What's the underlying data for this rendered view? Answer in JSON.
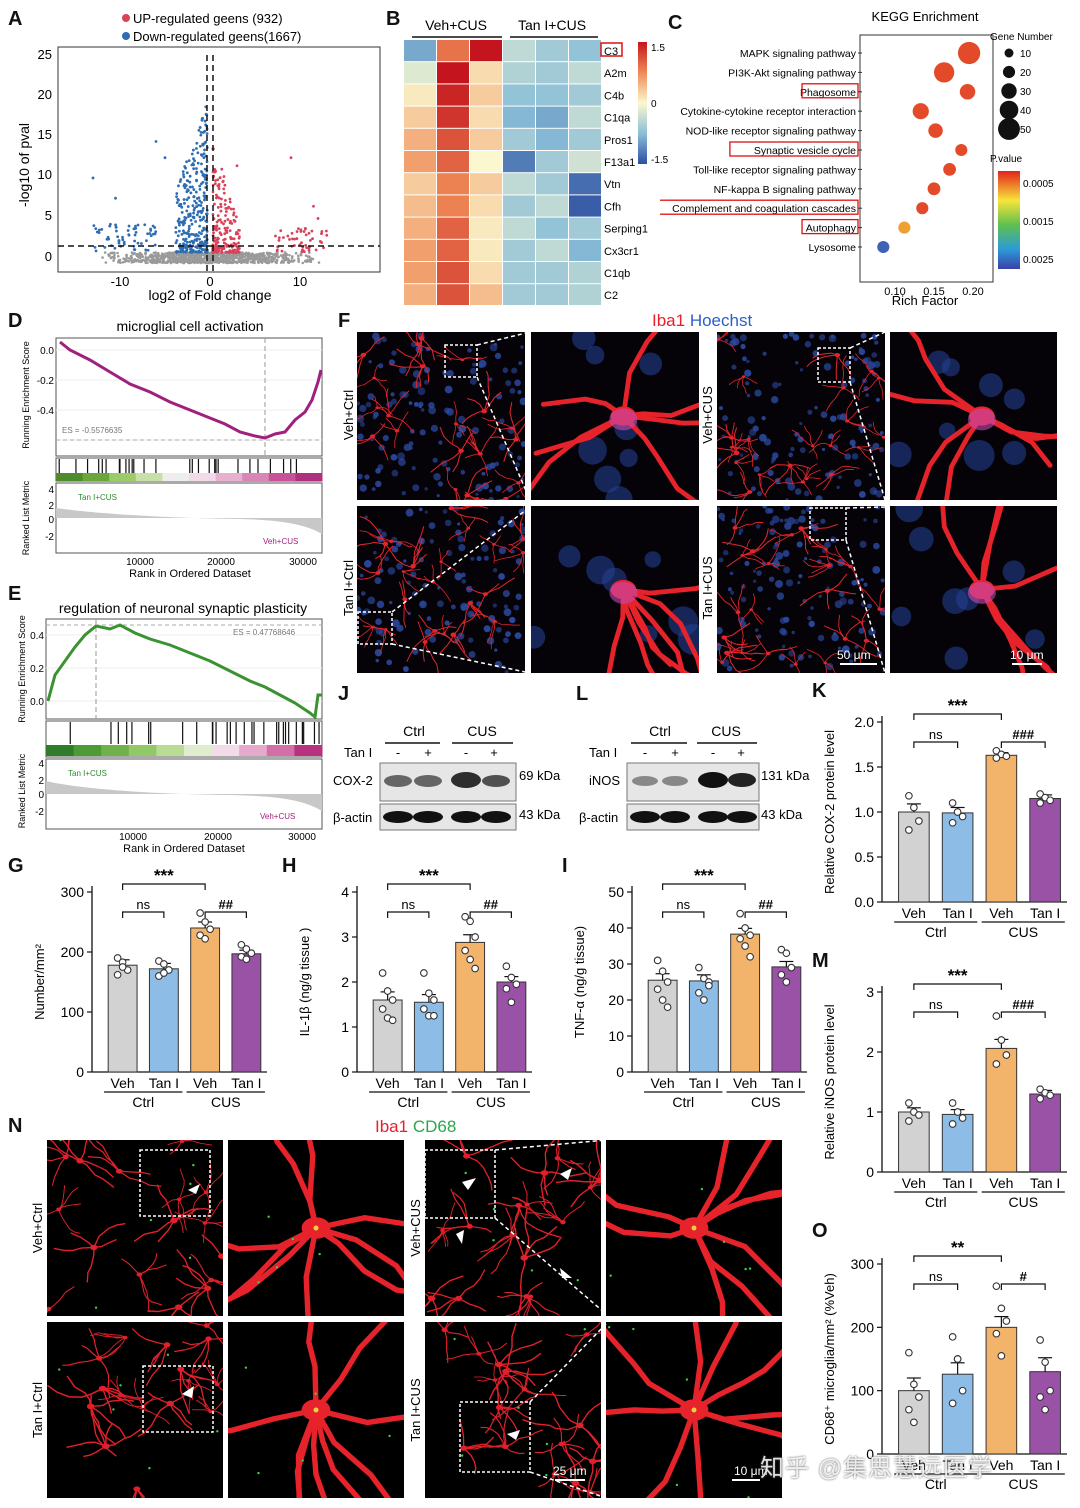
{
  "panels": {
    "A": "A",
    "B": "B",
    "C": "C",
    "D": "D",
    "E": "E",
    "F": "F",
    "G": "G",
    "H": "H",
    "I": "I",
    "J": "J",
    "K": "K",
    "L": "L",
    "M": "M",
    "N": "N",
    "O": "O"
  },
  "volcano": {
    "legend_up": "UP-regulated geens (932)",
    "legend_down": "Down-regulated geens(1667)",
    "xlabel": "log2 of Fold change",
    "ylabel": "-log10 of pval",
    "yticks": [
      "0",
      "5",
      "10",
      "15",
      "20",
      "25"
    ],
    "xticks": [
      "-10",
      "0",
      "10"
    ],
    "colors": {
      "up": "#d9435a",
      "down": "#2e6db3",
      "ns": "#9a9a9a"
    }
  },
  "heatmap": {
    "group1": "Veh+CUS",
    "group2": "Tan I+CUS",
    "genes": [
      "C3",
      "A2m",
      "C4b",
      "C1qa",
      "Pros1",
      "F13a1",
      "Vtn",
      "Cfh",
      "Serping1",
      "Cx3cr1",
      "C1qb",
      "C2"
    ],
    "scale_labels": [
      "1.5",
      "0",
      "-1.5"
    ],
    "values": [
      [
        -0.9,
        0.9,
        1.5,
        -0.4,
        -0.6,
        -0.7
      ],
      [
        -0.2,
        1.5,
        0.2,
        -0.5,
        -0.6,
        -0.4
      ],
      [
        0.1,
        1.4,
        0.3,
        -0.7,
        -0.7,
        -0.6
      ],
      [
        0.3,
        1.3,
        0.2,
        -0.8,
        -0.9,
        -0.4
      ],
      [
        0.5,
        1.1,
        0.3,
        -0.6,
        -0.8,
        -0.6
      ],
      [
        0.6,
        1.0,
        0.0,
        -1.2,
        -0.6,
        -0.3
      ],
      [
        0.3,
        0.8,
        0.3,
        -0.4,
        -0.6,
        -1.3
      ],
      [
        0.4,
        0.8,
        0.2,
        -0.6,
        -0.4,
        -1.4
      ],
      [
        0.5,
        1.0,
        0.1,
        -0.4,
        -0.7,
        -0.6
      ],
      [
        0.6,
        1.0,
        0.1,
        -0.6,
        -0.4,
        -0.8
      ],
      [
        0.6,
        1.1,
        0.2,
        -0.6,
        -0.6,
        -0.5
      ],
      [
        0.5,
        1.1,
        0.4,
        -0.6,
        -0.6,
        -0.5
      ]
    ]
  },
  "kegg": {
    "title": "KEGG Enrichment",
    "xlabel": "Rich Factor",
    "xticks": [
      "0.10",
      "0.15",
      "0.20"
    ],
    "size_title": "Gene Number",
    "size_labels": [
      "10",
      "20",
      "30",
      "40",
      "50"
    ],
    "color_title": "P.value",
    "color_labels": [
      "0.0005",
      "0.0015",
      "0.0025"
    ],
    "pathways": [
      {
        "name": "MAPK signaling pathway",
        "rf": 0.195,
        "n": 48,
        "p": 0.0004,
        "boxed": false
      },
      {
        "name": "PI3K-Akt signaling pathway",
        "rf": 0.163,
        "n": 42,
        "p": 0.0006,
        "boxed": false
      },
      {
        "name": "Phagosome",
        "rf": 0.193,
        "n": 28,
        "p": 0.0005,
        "boxed": true
      },
      {
        "name": "Cytokine-cytokine receptor interaction",
        "rf": 0.133,
        "n": 30,
        "p": 0.0006,
        "boxed": false
      },
      {
        "name": "NOD-like receptor signaling pathway",
        "rf": 0.152,
        "n": 25,
        "p": 0.0006,
        "boxed": false
      },
      {
        "name": "Synaptic vesicle cycle",
        "rf": 0.185,
        "n": 18,
        "p": 0.0005,
        "boxed": true
      },
      {
        "name": "Toll-like receptor signaling pathway",
        "rf": 0.17,
        "n": 20,
        "p": 0.0006,
        "boxed": false
      },
      {
        "name": "NF-kappa B signaling pathway",
        "rf": 0.15,
        "n": 20,
        "p": 0.0006,
        "boxed": false
      },
      {
        "name": "Complement and coagulation cascades",
        "rf": 0.135,
        "n": 18,
        "p": 0.0006,
        "boxed": true
      },
      {
        "name": "Autophagy",
        "rf": 0.112,
        "n": 18,
        "p": 0.0008,
        "boxed": true
      },
      {
        "name": "Lysosome",
        "rf": 0.085,
        "n": 18,
        "p": 0.0026,
        "boxed": false
      }
    ]
  },
  "gsea_d": {
    "title": "microglial cell activation",
    "es": "ES = -0.5576635",
    "ylabel_top": "Running Enrichment Score",
    "ylabel_bottom": "Ranked List Metric",
    "xlabel": "Rank in Ordered Dataset",
    "pos_label": "Tan I+CUS",
    "neg_label": "Veh+CUS",
    "yticks": [
      "0.0",
      "-0.2",
      "-0.4"
    ],
    "xticks": [
      "10000",
      "20000",
      "30000"
    ],
    "metric_ticks": [
      "4",
      "2",
      "0",
      "-2"
    ]
  },
  "gsea_e": {
    "title": "regulation of neuronal synaptic plasticity",
    "es": "ES = 0.47768646",
    "ylabel_top": "Running Enrichment Score",
    "ylabel_bottom": "Ranked List Metric",
    "xlabel": "Rank in Ordered Dataset",
    "pos_label": "Tan I+CUS",
    "neg_label": "Veh+CUS",
    "yticks": [
      "0.4",
      "0.2",
      "0.0"
    ],
    "xticks": [
      "10000",
      "20000",
      "30000"
    ],
    "metric_ticks": [
      "4",
      "2",
      "0",
      "-2"
    ]
  },
  "if_f": {
    "stain1": "Iba1",
    "stain2": "Hoechst",
    "rows": [
      "Veh+Ctrl",
      "Tan I+Ctrl"
    ],
    "rows2": [
      "Veh+CUS",
      "Tan I+CUS"
    ],
    "scale1": "50 μm",
    "scale2": "10 μm"
  },
  "blot_j": {
    "group1": "Ctrl",
    "group2": "CUS",
    "treat": "Tan I",
    "signs": [
      "-",
      "+",
      "-",
      "+"
    ],
    "band1": "COX-2",
    "band2": "β-actin",
    "kda1": "69 kDa",
    "kda2": "43 kDa"
  },
  "blot_l": {
    "group1": "Ctrl",
    "group2": "CUS",
    "treat": "Tan I",
    "signs": [
      "-",
      "+",
      "-",
      "+"
    ],
    "band1": "iNOS",
    "band2": "β-actin",
    "kda1": "131 kDa",
    "kda2": "43 kDa"
  },
  "bars": {
    "group_labels": [
      "Veh",
      "Tan I",
      "Veh",
      "Tan I"
    ],
    "sub_labels": [
      "Ctrl",
      "CUS"
    ],
    "colors": [
      "#d2d2d2",
      "#8dbde6",
      "#f2b36a",
      "#9a52a6"
    ],
    "G": {
      "ylabel": "Number/mm²",
      "yticks": [
        "0",
        "100",
        "200",
        "300"
      ],
      "ymax": 300,
      "means": [
        178,
        172,
        240,
        197
      ],
      "sem": [
        9,
        9,
        10,
        6
      ],
      "points": [
        [
          190,
          183,
          170,
          162,
          175
        ],
        [
          185,
          180,
          170,
          160,
          165
        ],
        [
          265,
          250,
          238,
          228,
          222
        ],
        [
          212,
          205,
          198,
          192,
          188
        ]
      ],
      "sig1": "***",
      "sig2": "##",
      "ns": "ns"
    },
    "H": {
      "ylabel": "IL-1β (ng/g tissue )",
      "yticks": [
        "0",
        "1",
        "2",
        "3",
        "4"
      ],
      "ymax": 4,
      "means": [
        1.6,
        1.55,
        2.88,
        2.0
      ],
      "sem": [
        0.18,
        0.17,
        0.17,
        0.12
      ],
      "points": [
        [
          2.2,
          1.8,
          1.6,
          1.4,
          1.2,
          1.15
        ],
        [
          2.2,
          1.75,
          1.6,
          1.4,
          1.25,
          1.25
        ],
        [
          3.45,
          3.35,
          3.0,
          2.7,
          2.5,
          2.3
        ],
        [
          2.35,
          2.1,
          1.95,
          1.85,
          1.55
        ]
      ],
      "sig1": "***",
      "sig2": "##",
      "ns": "ns"
    },
    "I": {
      "ylabel": "TNF-α (ng/g tissue)",
      "yticks": [
        "0",
        "10",
        "20",
        "30",
        "40",
        "50"
      ],
      "ymax": 50,
      "means": [
        25.5,
        25.3,
        38.3,
        29.2
      ],
      "sem": [
        1.8,
        1.7,
        1.6,
        1.5
      ],
      "points": [
        [
          31,
          28,
          25,
          23,
          20,
          18
        ],
        [
          29,
          26,
          25,
          22,
          20,
          24
        ],
        [
          44,
          40,
          38,
          37,
          35,
          32
        ],
        [
          34,
          33,
          29,
          27,
          25
        ]
      ],
      "sig1": "***",
      "sig2": "##",
      "ns": "ns"
    },
    "K": {
      "ylabel": "Relative COX-2 protein level",
      "yticks": [
        "0.0",
        "0.5",
        "1.0",
        "1.5",
        "2.0"
      ],
      "ymax": 2,
      "means": [
        1.0,
        0.99,
        1.63,
        1.15
      ],
      "sem": [
        0.09,
        0.06,
        0.03,
        0.04
      ],
      "points": [
        [
          1.18,
          1.05,
          0.9,
          0.8
        ],
        [
          1.1,
          1.0,
          0.95,
          0.88
        ],
        [
          1.68,
          1.64,
          1.62,
          1.6
        ],
        [
          1.2,
          1.16,
          1.13,
          1.1
        ]
      ],
      "sig1": "***",
      "sig2": "###",
      "ns": "ns"
    },
    "M": {
      "ylabel": "Relative iNOS protein level",
      "yticks": [
        "0",
        "1",
        "2",
        "3"
      ],
      "ymax": 3,
      "means": [
        1.0,
        0.96,
        2.06,
        1.3
      ],
      "sem": [
        0.07,
        0.08,
        0.15,
        0.06
      ],
      "points": [
        [
          1.15,
          1.0,
          0.95,
          0.85
        ],
        [
          1.15,
          1.0,
          0.9,
          0.8
        ],
        [
          2.6,
          2.2,
          1.95,
          1.8
        ],
        [
          1.38,
          1.32,
          1.28,
          1.22
        ]
      ],
      "sig1": "***",
      "sig2": "###",
      "ns": "ns"
    },
    "O": {
      "ylabel": "CD68⁺ microglia/mm² (%Veh)",
      "yticks": [
        "0",
        "100",
        "200",
        "300"
      ],
      "ymax": 300,
      "means": [
        100,
        126,
        200,
        130
      ],
      "sem": [
        20,
        18,
        17,
        22
      ],
      "points": [
        [
          160,
          110,
          90,
          70,
          50
        ],
        [
          185,
          150,
          100,
          80,
          150
        ],
        [
          265,
          230,
          210,
          190,
          155
        ],
        [
          180,
          145,
          100,
          90,
          70
        ]
      ],
      "sig1": "**",
      "sig2": "#",
      "ns": "ns"
    }
  },
  "if_n": {
    "stain1": "Iba1",
    "stain2": "CD68",
    "rows": [
      "Veh+Ctrl",
      "Tan I+Ctrl"
    ],
    "rows2": [
      "Veh+CUS",
      "Tan I+CUS"
    ],
    "scale1": "25 μm",
    "scale2": "10 μm"
  },
  "watermark": "知乎 @集思慧远医学"
}
